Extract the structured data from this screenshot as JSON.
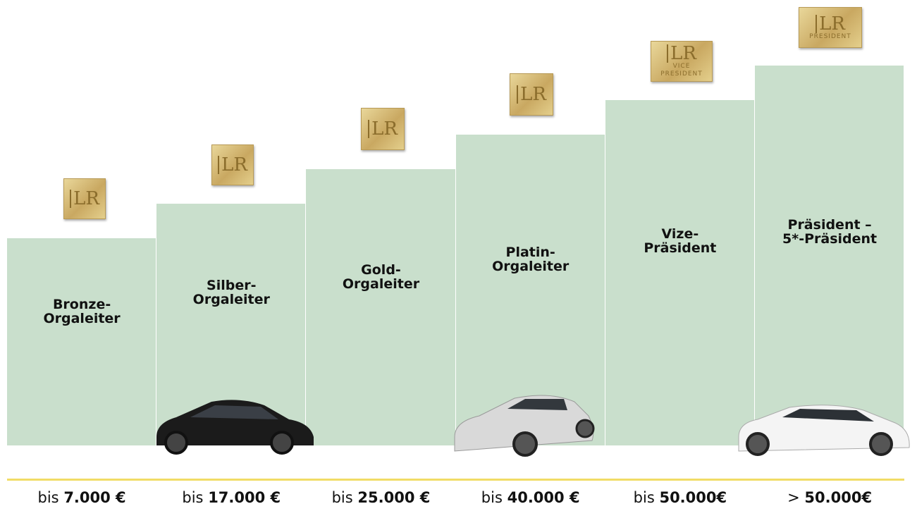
{
  "levels": [
    {
      "title": [
        "Bronze-",
        "Orgaleiter"
      ],
      "badge": {
        "logo": "LR"
      },
      "income": {
        "prefix": "bis",
        "amount": "7.000 €"
      }
    },
    {
      "title": [
        "Silber-",
        "Orgaleiter"
      ],
      "badge": {
        "logo": "LR"
      },
      "income": {
        "prefix": "bis",
        "amount": "17.000 €"
      }
    },
    {
      "title": [
        "Gold-",
        "Orgaleiter"
      ],
      "badge": {
        "logo": "LR"
      },
      "income": {
        "prefix": "bis",
        "amount": "25.000 €"
      }
    },
    {
      "title": [
        "Platin-",
        "Orgaleiter"
      ],
      "badge": {
        "logo": "LR"
      },
      "income": {
        "prefix": "bis",
        "amount": "40.000 €"
      }
    },
    {
      "title": [
        "Vize-",
        "Präsident"
      ],
      "badge": {
        "logo": "LR",
        "caption": [
          "VICE",
          "PRESIDENT"
        ]
      },
      "income": {
        "prefix": "bis",
        "amount": "50.000€"
      }
    },
    {
      "title": [
        "Präsident –",
        "5*-Präsident"
      ],
      "badge": {
        "logo": "LR",
        "caption": [
          "PRESIDENT"
        ]
      },
      "income": {
        "prefix": ">",
        "amount": "50.000€"
      }
    }
  ]
}
